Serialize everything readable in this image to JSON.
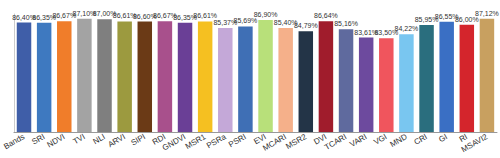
{
  "chart_data": {
    "type": "bar",
    "categories": [
      "Bands",
      "SRI",
      "NDVI",
      "TVI",
      "NLI",
      "ARVI",
      "SIPI",
      "RDI",
      "GNDVI",
      "MSR1",
      "PSRa",
      "PSRI",
      "EVI",
      "MCARI",
      "MSR2",
      "DVI",
      "TCARI",
      "VARI",
      "VGI",
      "MND",
      "CRI",
      "GI",
      "RI",
      "MSAVI2"
    ],
    "values": [
      86.4,
      86.35,
      86.67,
      87.1,
      87.0,
      86.61,
      86.6,
      86.67,
      86.35,
      86.61,
      85.37,
      85.69,
      86.9,
      85.4,
      84.79,
      86.64,
      85.16,
      83.61,
      83.5,
      84.22,
      85.95,
      86.55,
      86.0,
      87.12
    ],
    "value_labels": [
      "86,40%",
      "86,35%",
      "86,67%",
      "87,10%",
      "87,00%",
      "86,61%",
      "86,60%",
      "86,67%",
      "86,35%",
      "86,61%",
      "85,37%",
      "85,69%",
      "86,90%",
      "85,40%",
      "84,79%",
      "86,64%",
      "85,16%",
      "83,61%",
      "83,50%",
      "84,22%",
      "85,95%",
      "86,55%",
      "86,00%",
      "87,12%"
    ],
    "colors": [
      "#3f5ea8",
      "#3e79c0",
      "#f07d2a",
      "#a3a3a3",
      "#7f7f7f",
      "#9c9a3f",
      "#6b3a16",
      "#a8508c",
      "#6a3f96",
      "#f5c021",
      "#c4a8d8",
      "#3f6fb5",
      "#b8e07a",
      "#f5b08a",
      "#233447",
      "#a01c2c",
      "#5f6a9e",
      "#6d4a9e",
      "#f0555d",
      "#79c6f0",
      "#2a6e7e",
      "#3a6fc4",
      "#d4252c",
      "#c8a060"
    ],
    "ylim": [
      66,
      88
    ],
    "data_labels": true,
    "tick_labels": "x",
    "grid": false
  }
}
